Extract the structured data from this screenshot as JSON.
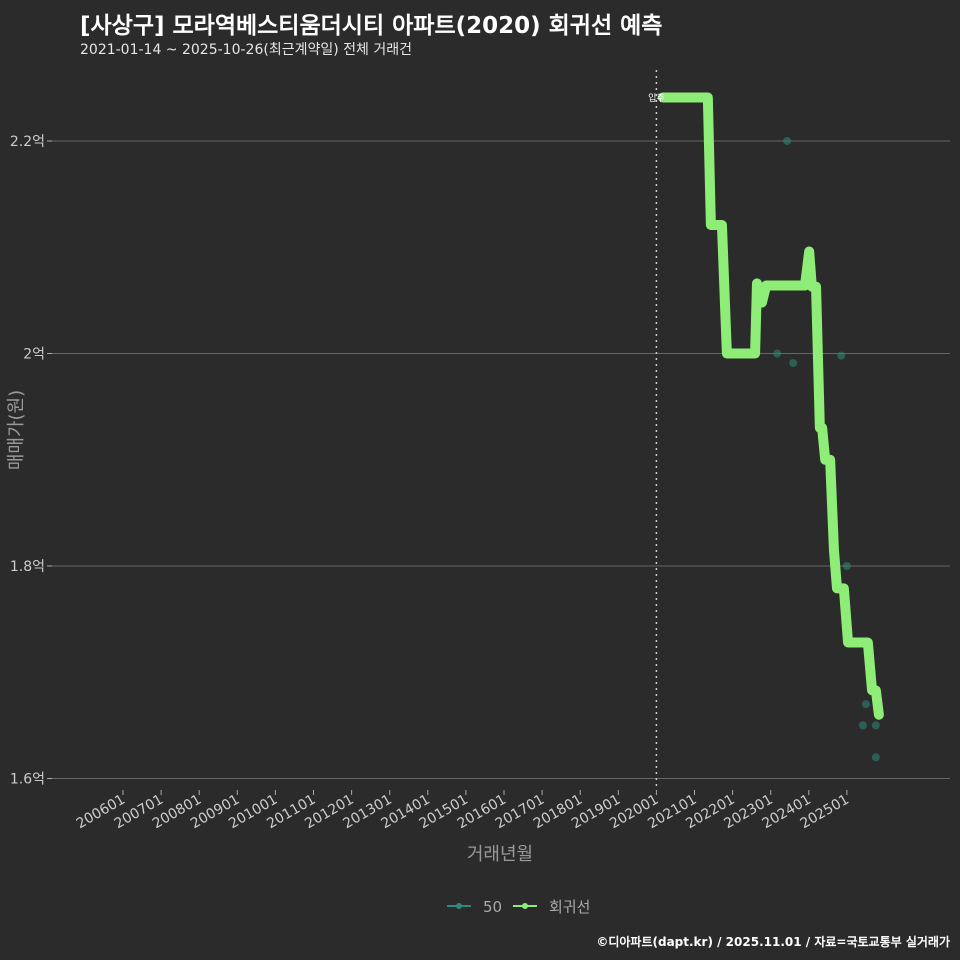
{
  "title": "[사상구] 모라역베스티움더시티 아파트(2020) 회귀선 예측",
  "subtitle": "2021-01-14 ~ 2025-10-26(최근계약일) 전체 거래건",
  "footer": "©디아파트(dapt.kr) / 2025.11.01 / 자료=국토교통부 실거래가",
  "colors": {
    "line": "#8ded76",
    "points": "#2e8a7a",
    "grid": "#666666",
    "bg": "#2b2b2b"
  },
  "chart_data": {
    "type": "line",
    "title": "[사상구] 모라역베스티움더시티 아파트(2020) 회귀선 예측",
    "xlabel": "거래년월",
    "ylabel": "매매가(원)",
    "xlim": [
      2005.5,
      2028.3
    ],
    "ylim": [
      1.6,
      2.26
    ],
    "grid": true,
    "legend_position": "bottom",
    "x_ticks": [
      {
        "v": 2006,
        "label": "200601"
      },
      {
        "v": 2007,
        "label": "200701"
      },
      {
        "v": 2008,
        "label": "200801"
      },
      {
        "v": 2009,
        "label": "200901"
      },
      {
        "v": 2010,
        "label": "201001"
      },
      {
        "v": 2011,
        "label": "201101"
      },
      {
        "v": 2012,
        "label": "201201"
      },
      {
        "v": 2013,
        "label": "201301"
      },
      {
        "v": 2014,
        "label": "201401"
      },
      {
        "v": 2015,
        "label": "201501"
      },
      {
        "v": 2016,
        "label": "201601"
      },
      {
        "v": 2017,
        "label": "201701"
      },
      {
        "v": 2018,
        "label": "201801"
      },
      {
        "v": 2019,
        "label": "201901"
      },
      {
        "v": 2020,
        "label": "202001"
      },
      {
        "v": 2021,
        "label": "202101"
      },
      {
        "v": 2022,
        "label": "202201"
      },
      {
        "v": 2023,
        "label": "202301"
      },
      {
        "v": 2024,
        "label": "202401"
      },
      {
        "v": 2025,
        "label": "202501"
      }
    ],
    "y_ticks": [
      {
        "v": 1.6,
        "label": "1.6억"
      },
      {
        "v": 1.8,
        "label": "1.8억"
      },
      {
        "v": 2.0,
        "label": "2억"
      },
      {
        "v": 2.2,
        "label": "2.2억"
      }
    ],
    "annotation": {
      "x": 2020.0,
      "label": "입주"
    },
    "series": [
      {
        "name": "50",
        "type": "scatter",
        "points": [
          [
            2023.43,
            2.2
          ],
          [
            2023.17,
            2.0
          ],
          [
            2023.59,
            1.991
          ],
          [
            2024.85,
            1.998
          ],
          [
            2025.0,
            1.8
          ],
          [
            2025.5,
            1.67
          ],
          [
            2025.42,
            1.65
          ],
          [
            2025.76,
            1.65
          ],
          [
            2025.76,
            1.62
          ]
        ]
      },
      {
        "name": "회귀선",
        "type": "line",
        "points": [
          [
            2020.17,
            2.241
          ],
          [
            2021.35,
            2.241
          ],
          [
            2021.43,
            2.121
          ],
          [
            2021.72,
            2.121
          ],
          [
            2021.85,
            2.0
          ],
          [
            2022.59,
            2.0
          ],
          [
            2022.64,
            2.066
          ],
          [
            2022.72,
            2.05
          ],
          [
            2022.77,
            2.048
          ],
          [
            2022.88,
            2.064
          ],
          [
            2023.9,
            2.064
          ],
          [
            2024.01,
            2.096
          ],
          [
            2024.08,
            2.063
          ],
          [
            2024.19,
            2.063
          ],
          [
            2024.29,
            1.93
          ],
          [
            2024.35,
            1.93
          ],
          [
            2024.43,
            1.9
          ],
          [
            2024.56,
            1.9
          ],
          [
            2024.66,
            1.815
          ],
          [
            2024.74,
            1.779
          ],
          [
            2024.92,
            1.779
          ],
          [
            2025.03,
            1.728
          ],
          [
            2025.55,
            1.728
          ],
          [
            2025.66,
            1.683
          ],
          [
            2025.76,
            1.683
          ],
          [
            2025.84,
            1.66
          ]
        ]
      }
    ]
  }
}
